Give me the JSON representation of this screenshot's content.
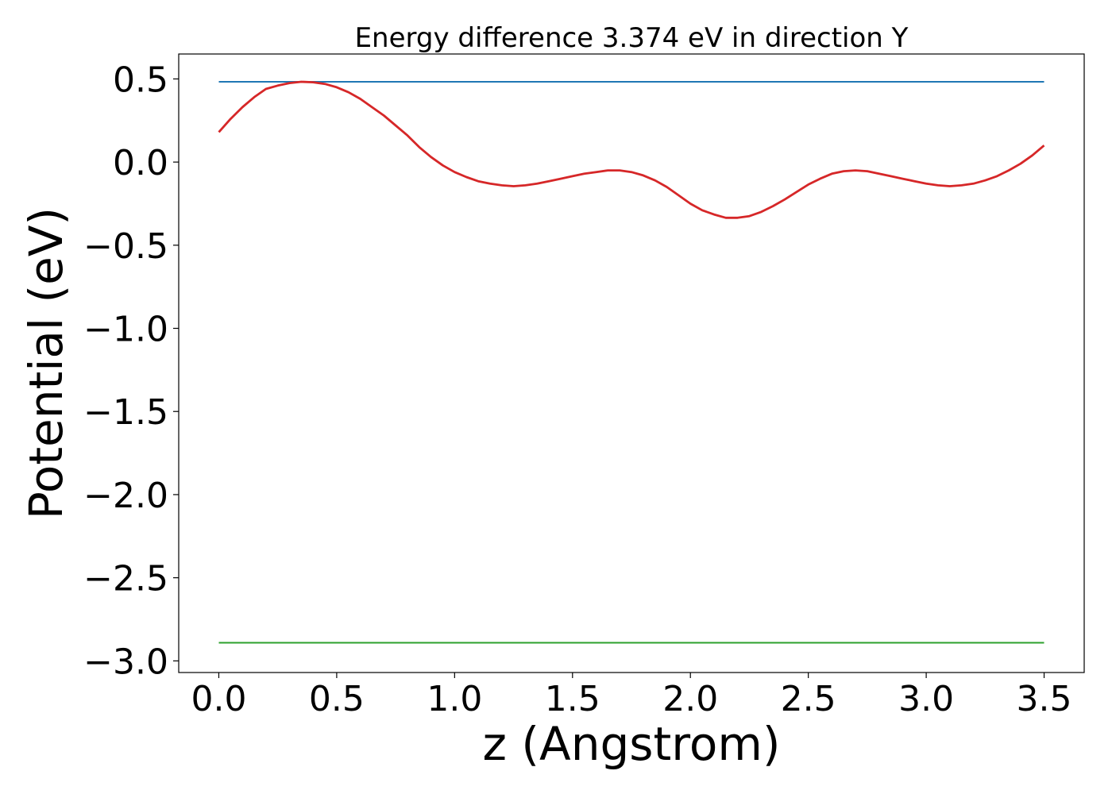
{
  "chart_data": {
    "type": "line",
    "title": "Energy difference 3.374 eV in direction Y",
    "xlabel": "z (Angstrom)",
    "ylabel": "Potential (eV)",
    "xlim": [
      -0.17,
      3.67
    ],
    "ylim": [
      -3.07,
      0.65
    ],
    "x_ticks": [
      0.0,
      0.5,
      1.0,
      1.5,
      2.0,
      2.5,
      3.0,
      3.5
    ],
    "x_tick_labels": [
      "0.0",
      "0.5",
      "1.0",
      "1.5",
      "2.0",
      "2.5",
      "3.0",
      "3.5"
    ],
    "y_ticks": [
      0.5,
      0.0,
      -0.5,
      -1.0,
      -1.5,
      -2.0,
      -2.5,
      -3.0
    ],
    "y_tick_labels": [
      "0.5",
      "0.0",
      "−0.5",
      "−1.0",
      "−1.5",
      "−2.0",
      "−2.5",
      "−3.0"
    ],
    "grid": false,
    "series": [
      {
        "color": "#1f77b4",
        "x": [
          0.0,
          3.5
        ],
        "y": [
          0.483,
          0.483
        ]
      },
      {
        "color": "#2ca02c",
        "x": [
          0.0,
          3.5
        ],
        "y": [
          -2.891,
          -2.891
        ]
      },
      {
        "color": "#d62728",
        "x": [
          0.0,
          0.05,
          0.1,
          0.15,
          0.2,
          0.25,
          0.3,
          0.35,
          0.4,
          0.45,
          0.5,
          0.55,
          0.6,
          0.65,
          0.7,
          0.75,
          0.8,
          0.85,
          0.9,
          0.95,
          1.0,
          1.05,
          1.1,
          1.15,
          1.2,
          1.25,
          1.3,
          1.35,
          1.4,
          1.45,
          1.5,
          1.55,
          1.6,
          1.65,
          1.7,
          1.75,
          1.8,
          1.85,
          1.9,
          1.95,
          2.0,
          2.05,
          2.1,
          2.15,
          2.2,
          2.25,
          2.3,
          2.35,
          2.4,
          2.45,
          2.5,
          2.55,
          2.6,
          2.65,
          2.7,
          2.75,
          2.8,
          2.85,
          2.9,
          2.95,
          3.0,
          3.05,
          3.1,
          3.15,
          3.2,
          3.25,
          3.3,
          3.35,
          3.4,
          3.45,
          3.5
        ],
        "y": [
          0.18,
          0.26,
          0.33,
          0.39,
          0.44,
          0.46,
          0.475,
          0.483,
          0.48,
          0.47,
          0.45,
          0.42,
          0.38,
          0.33,
          0.28,
          0.22,
          0.16,
          0.09,
          0.03,
          -0.02,
          -0.06,
          -0.09,
          -0.115,
          -0.13,
          -0.14,
          -0.145,
          -0.14,
          -0.13,
          -0.115,
          -0.1,
          -0.085,
          -0.07,
          -0.06,
          -0.05,
          -0.05,
          -0.06,
          -0.08,
          -0.11,
          -0.15,
          -0.2,
          -0.25,
          -0.29,
          -0.315,
          -0.335,
          -0.335,
          -0.325,
          -0.3,
          -0.265,
          -0.225,
          -0.18,
          -0.135,
          -0.1,
          -0.07,
          -0.055,
          -0.05,
          -0.055,
          -0.07,
          -0.085,
          -0.1,
          -0.115,
          -0.13,
          -0.14,
          -0.145,
          -0.14,
          -0.13,
          -0.11,
          -0.085,
          -0.05,
          -0.01,
          0.04,
          0.1
        ]
      }
    ]
  }
}
